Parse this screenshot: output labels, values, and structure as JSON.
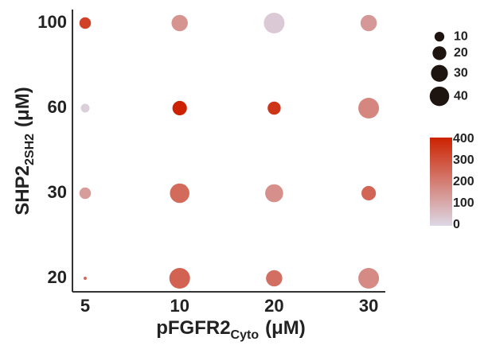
{
  "chart_data": {
    "type": "bubble",
    "xlabel": [
      "pFGFR2",
      "Cyto",
      "(μM)"
    ],
    "ylabel": [
      "SHP2",
      "2SH2",
      "(μM)"
    ],
    "x": [
      "5",
      "10",
      "20",
      "30"
    ],
    "y": [
      "20",
      "30",
      "60",
      "100"
    ],
    "values": [
      [
        250,
        260,
        230,
        170
      ],
      [
        130,
        240,
        160,
        250
      ],
      [
        20,
        400,
        360,
        180
      ],
      [
        330,
        150,
        30,
        140
      ]
    ],
    "sizes": [
      [
        1,
        45,
        28,
        45
      ],
      [
        14,
        40,
        34,
        22
      ],
      [
        8,
        22,
        18,
        45
      ],
      [
        14,
        28,
        45,
        28
      ]
    ],
    "size_ticks": [
      10,
      20,
      30,
      40
    ],
    "colorlim": [
      0,
      400
    ],
    "colorticks": [
      0,
      100,
      200,
      300,
      400
    ],
    "color_range": [
      "#dcd8e6",
      "#cc2200"
    ],
    "size_legend_color": "#1e1410"
  }
}
